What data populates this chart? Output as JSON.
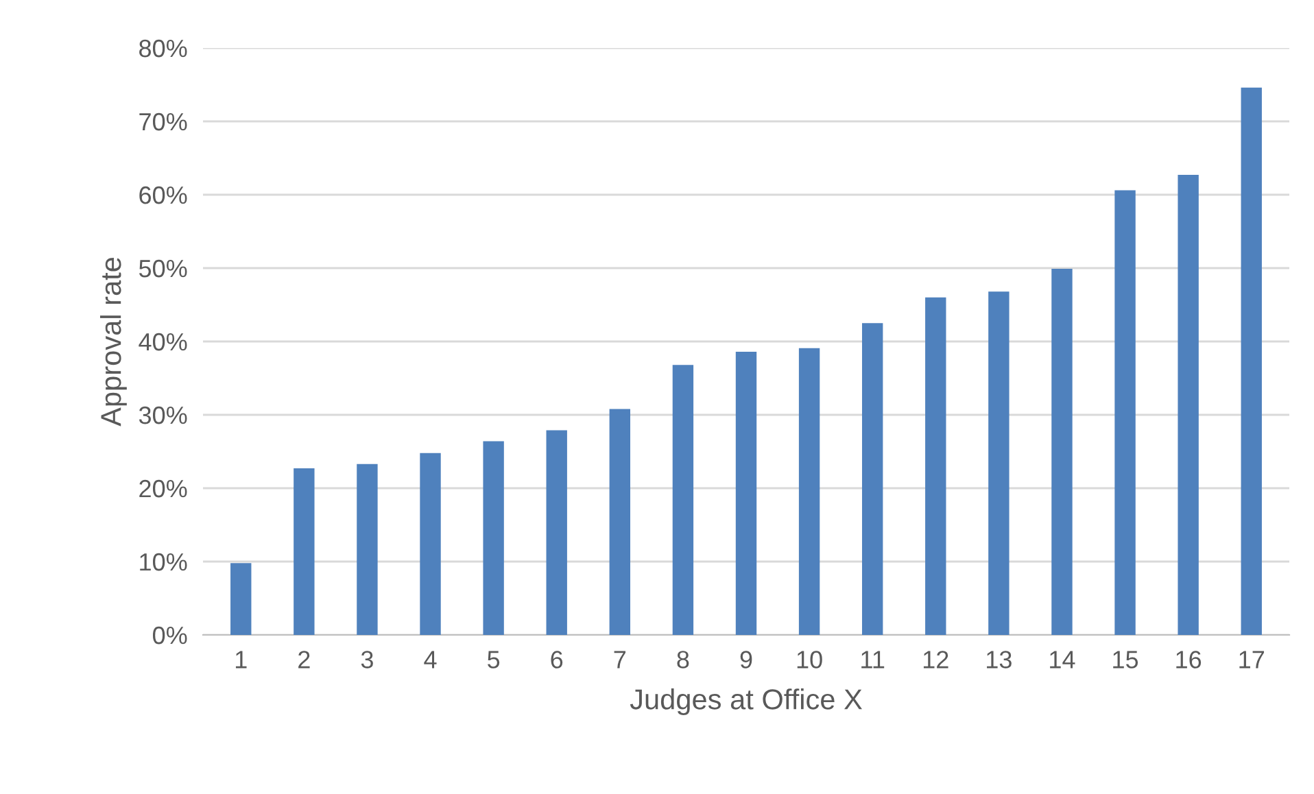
{
  "chart_data": {
    "type": "bar",
    "xlabel": "Judges at Office X",
    "ylabel": "Approval rate",
    "categories": [
      "1",
      "2",
      "3",
      "4",
      "5",
      "6",
      "7",
      "8",
      "9",
      "10",
      "11",
      "12",
      "13",
      "14",
      "15",
      "16",
      "17"
    ],
    "values": [
      9.8,
      22.7,
      23.3,
      24.8,
      26.4,
      27.9,
      30.8,
      36.8,
      38.6,
      39.1,
      42.5,
      46.0,
      46.8,
      49.9,
      60.6,
      62.7,
      74.6
    ],
    "color": "#4f81bd",
    "ylim": [
      0,
      80
    ],
    "yticks": [
      {
        "value": 0,
        "label": "0%"
      },
      {
        "value": 10,
        "label": "10%"
      },
      {
        "value": 20,
        "label": "20%"
      },
      {
        "value": 30,
        "label": "30%"
      },
      {
        "value": 40,
        "label": "40%"
      },
      {
        "value": 50,
        "label": "50%"
      },
      {
        "value": 60,
        "label": "60%"
      },
      {
        "value": 70,
        "label": "70%"
      },
      {
        "value": 80,
        "label": "80%"
      }
    ],
    "grid": "y"
  }
}
